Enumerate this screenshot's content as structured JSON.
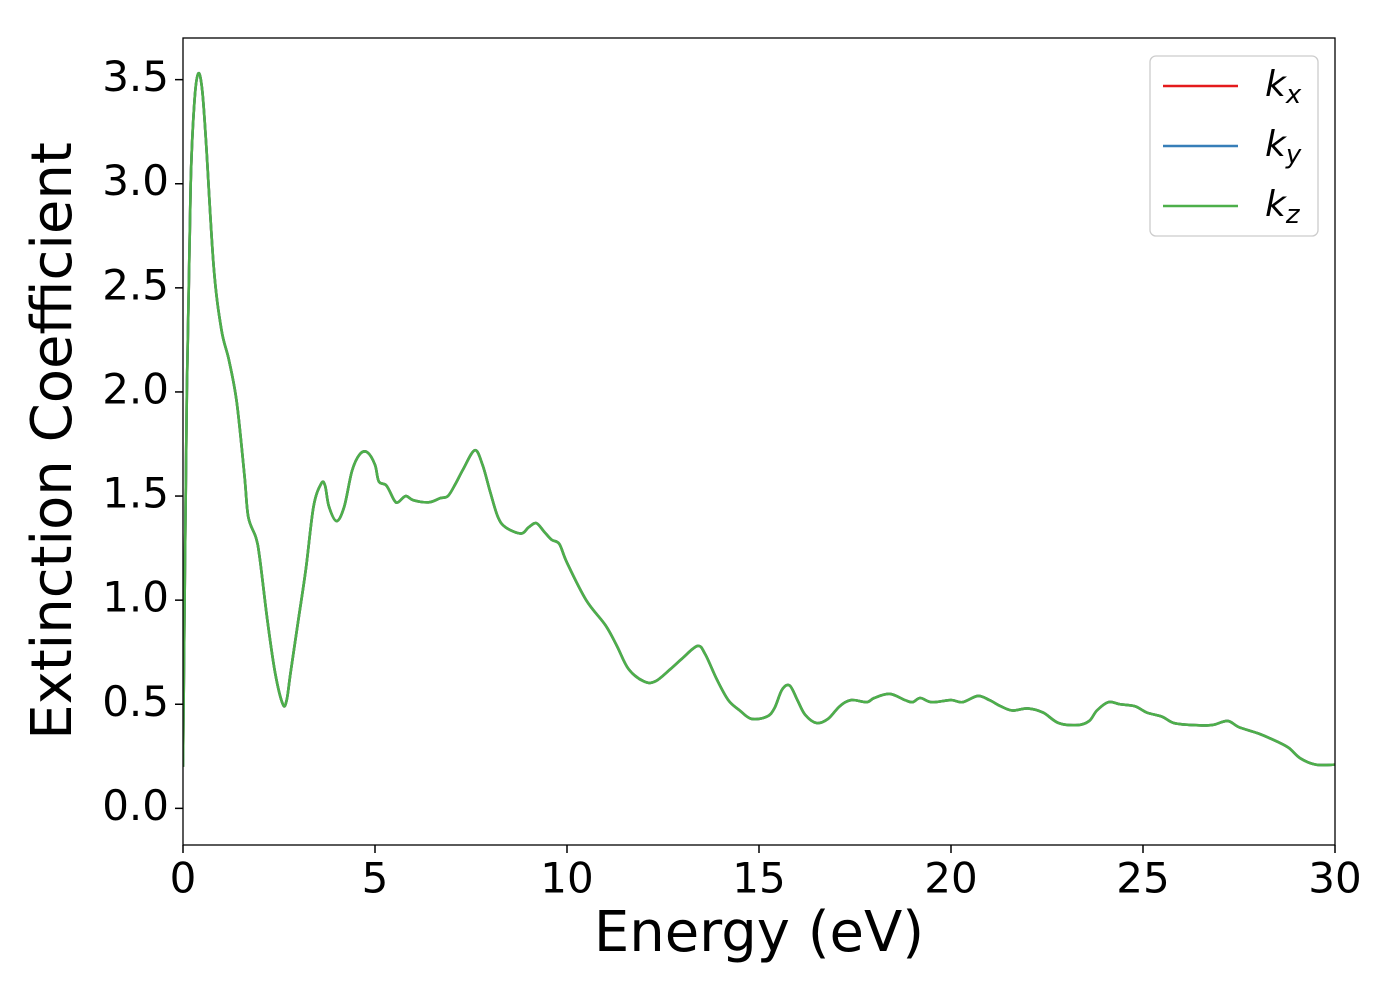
{
  "chart_data": {
    "type": "line",
    "xlabel": "Energy (eV)",
    "ylabel": "Extinction Coefficient",
    "x": [
      0,
      0.1,
      0.2,
      0.3,
      0.4,
      0.5,
      0.6,
      0.8,
      1.0,
      1.2,
      1.4,
      1.6,
      1.7,
      1.9,
      2.0,
      2.2,
      2.4,
      2.6,
      2.7,
      2.8,
      3.0,
      3.2,
      3.4,
      3.6,
      3.7,
      3.8,
      4.0,
      4.2,
      4.4,
      4.6,
      4.8,
      5.0,
      5.1,
      5.3,
      5.5,
      5.6,
      5.8,
      6.0,
      6.4,
      6.7,
      6.9,
      7.1,
      7.3,
      7.6,
      7.8,
      8.0,
      8.2,
      8.4,
      8.8,
      9.0,
      9.2,
      9.4,
      9.6,
      9.8,
      10.0,
      10.5,
      11.0,
      11.3,
      11.6,
      12.0,
      12.3,
      12.7,
      13.0,
      13.4,
      13.6,
      13.9,
      14.2,
      14.5,
      14.8,
      15.2,
      15.4,
      15.6,
      15.8,
      16.0,
      16.2,
      16.5,
      16.8,
      17.1,
      17.4,
      17.8,
      18.0,
      18.4,
      18.8,
      19.0,
      19.2,
      19.5,
      20.0,
      20.3,
      20.7,
      21.0,
      21.3,
      21.6,
      22.0,
      22.4,
      22.8,
      23.3,
      23.6,
      23.8,
      24.1,
      24.4,
      24.8,
      25.1,
      25.5,
      25.8,
      26.3,
      26.8,
      27.2,
      27.5,
      28.0,
      28.5,
      28.8,
      29.1,
      29.5,
      30.0
    ],
    "series": [
      {
        "name": "kx",
        "color": "#e41a1c",
        "values": [
          0.2,
          2.0,
          3.0,
          3.4,
          3.53,
          3.45,
          3.2,
          2.6,
          2.3,
          2.15,
          1.95,
          1.6,
          1.4,
          1.3,
          1.2,
          0.9,
          0.65,
          0.5,
          0.52,
          0.65,
          0.9,
          1.15,
          1.45,
          1.56,
          1.55,
          1.45,
          1.38,
          1.45,
          1.62,
          1.7,
          1.71,
          1.65,
          1.57,
          1.55,
          1.48,
          1.47,
          1.5,
          1.48,
          1.47,
          1.49,
          1.5,
          1.56,
          1.63,
          1.72,
          1.65,
          1.52,
          1.4,
          1.35,
          1.32,
          1.35,
          1.37,
          1.33,
          1.29,
          1.27,
          1.18,
          1.0,
          0.88,
          0.78,
          0.67,
          0.61,
          0.61,
          0.67,
          0.72,
          0.78,
          0.74,
          0.62,
          0.52,
          0.47,
          0.43,
          0.44,
          0.48,
          0.57,
          0.59,
          0.52,
          0.45,
          0.41,
          0.43,
          0.49,
          0.52,
          0.51,
          0.53,
          0.55,
          0.52,
          0.51,
          0.53,
          0.51,
          0.52,
          0.51,
          0.54,
          0.52,
          0.49,
          0.47,
          0.48,
          0.46,
          0.41,
          0.4,
          0.42,
          0.47,
          0.51,
          0.5,
          0.49,
          0.46,
          0.44,
          0.41,
          0.4,
          0.4,
          0.42,
          0.39,
          0.36,
          0.32,
          0.29,
          0.24,
          0.21,
          0.21
        ]
      },
      {
        "name": "ky",
        "color": "#377eb8",
        "values": [
          0.2,
          2.0,
          3.0,
          3.4,
          3.53,
          3.45,
          3.2,
          2.6,
          2.3,
          2.15,
          1.95,
          1.6,
          1.4,
          1.3,
          1.2,
          0.9,
          0.65,
          0.5,
          0.52,
          0.65,
          0.9,
          1.15,
          1.45,
          1.56,
          1.55,
          1.45,
          1.38,
          1.45,
          1.62,
          1.7,
          1.71,
          1.65,
          1.57,
          1.55,
          1.48,
          1.47,
          1.5,
          1.48,
          1.47,
          1.49,
          1.5,
          1.56,
          1.63,
          1.72,
          1.65,
          1.52,
          1.4,
          1.35,
          1.32,
          1.35,
          1.37,
          1.33,
          1.29,
          1.27,
          1.18,
          1.0,
          0.88,
          0.78,
          0.67,
          0.61,
          0.61,
          0.67,
          0.72,
          0.78,
          0.74,
          0.62,
          0.52,
          0.47,
          0.43,
          0.44,
          0.48,
          0.57,
          0.59,
          0.52,
          0.45,
          0.41,
          0.43,
          0.49,
          0.52,
          0.51,
          0.53,
          0.55,
          0.52,
          0.51,
          0.53,
          0.51,
          0.52,
          0.51,
          0.54,
          0.52,
          0.49,
          0.47,
          0.48,
          0.46,
          0.41,
          0.4,
          0.42,
          0.47,
          0.51,
          0.5,
          0.49,
          0.46,
          0.44,
          0.41,
          0.4,
          0.4,
          0.42,
          0.39,
          0.36,
          0.32,
          0.29,
          0.24,
          0.21,
          0.21
        ]
      },
      {
        "name": "kz",
        "color": "#4daf4a",
        "values": [
          0.2,
          2.0,
          3.0,
          3.4,
          3.53,
          3.45,
          3.2,
          2.6,
          2.3,
          2.15,
          1.95,
          1.6,
          1.4,
          1.3,
          1.2,
          0.9,
          0.65,
          0.5,
          0.52,
          0.65,
          0.9,
          1.15,
          1.45,
          1.56,
          1.55,
          1.45,
          1.38,
          1.45,
          1.62,
          1.7,
          1.71,
          1.65,
          1.57,
          1.55,
          1.48,
          1.47,
          1.5,
          1.48,
          1.47,
          1.49,
          1.5,
          1.56,
          1.63,
          1.72,
          1.65,
          1.52,
          1.4,
          1.35,
          1.32,
          1.35,
          1.37,
          1.33,
          1.29,
          1.27,
          1.18,
          1.0,
          0.88,
          0.78,
          0.67,
          0.61,
          0.61,
          0.67,
          0.72,
          0.78,
          0.74,
          0.62,
          0.52,
          0.47,
          0.43,
          0.44,
          0.48,
          0.57,
          0.59,
          0.52,
          0.45,
          0.41,
          0.43,
          0.49,
          0.52,
          0.51,
          0.53,
          0.55,
          0.52,
          0.51,
          0.53,
          0.51,
          0.52,
          0.51,
          0.54,
          0.52,
          0.49,
          0.47,
          0.48,
          0.46,
          0.41,
          0.4,
          0.42,
          0.47,
          0.51,
          0.5,
          0.49,
          0.46,
          0.44,
          0.41,
          0.4,
          0.4,
          0.42,
          0.39,
          0.36,
          0.32,
          0.29,
          0.24,
          0.21,
          0.21
        ]
      }
    ],
    "xlim": [
      0,
      30
    ],
    "xticks": [
      0,
      5,
      10,
      15,
      20,
      25,
      30
    ],
    "ylim": [
      -0.176,
      3.7
    ],
    "yticks": [
      {
        "value": 0,
        "label": "0.0"
      },
      0.5,
      {
        "value": 1,
        "label": "1.0"
      },
      1.5,
      {
        "value": 2,
        "label": "2.0"
      },
      2.5,
      {
        "value": 3,
        "label": "3.0"
      },
      3.5
    ],
    "grid": false,
    "legend": "upper right"
  }
}
